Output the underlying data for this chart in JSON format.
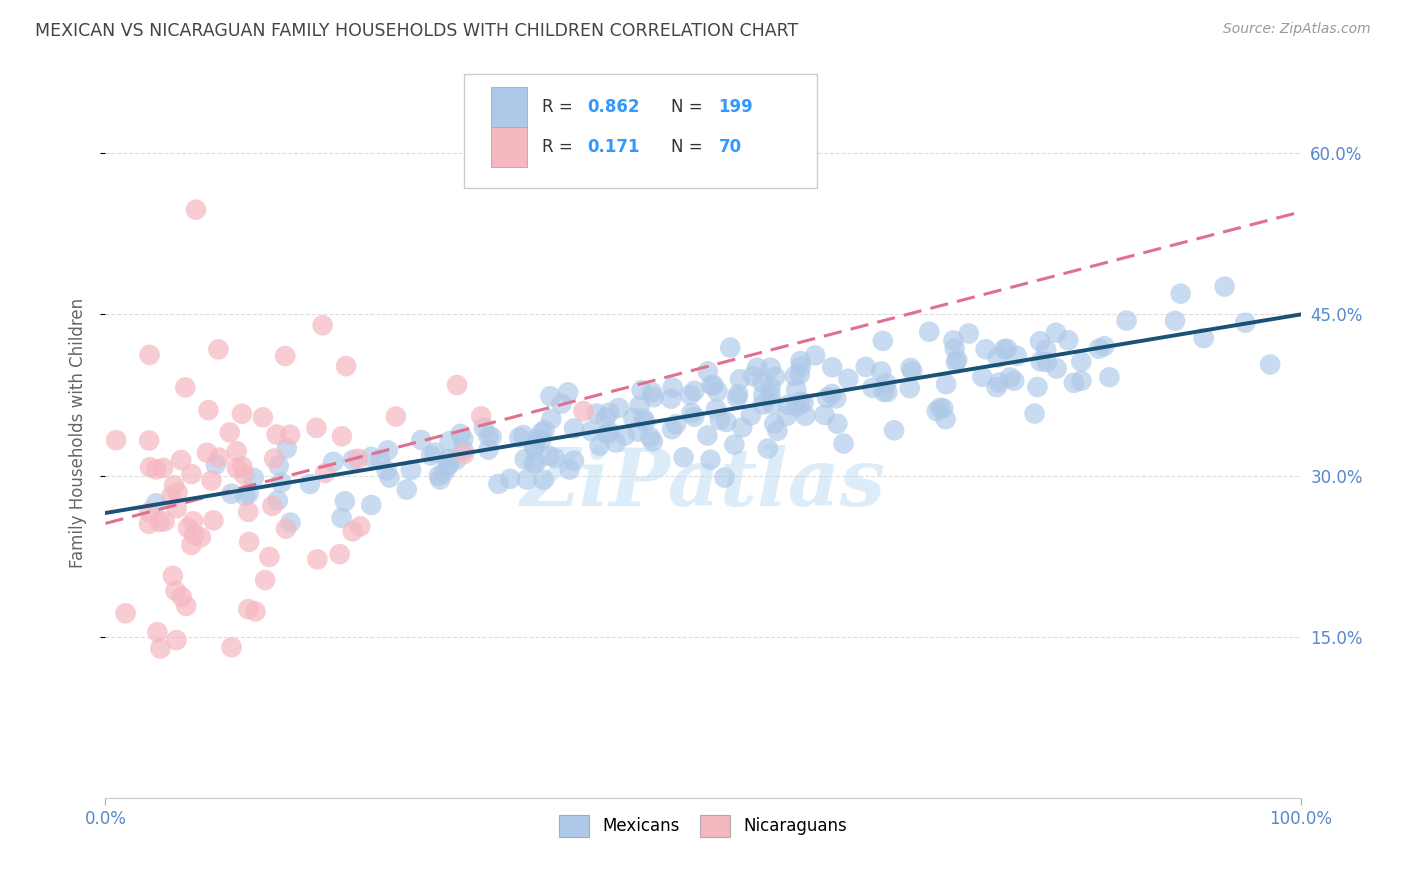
{
  "title": "MEXICAN VS NICARAGUAN FAMILY HOUSEHOLDS WITH CHILDREN CORRELATION CHART",
  "source": "Source: ZipAtlas.com",
  "ylabel": "Family Households with Children",
  "mexican_R": 0.862,
  "mexican_N": 199,
  "nicaraguan_R": 0.171,
  "nicaraguan_N": 70,
  "mexican_color": "#adc8e8",
  "mexican_line_color": "#1a5276",
  "nicaraguan_color": "#f5b7c0",
  "nicaraguan_line_color": "#e07090",
  "nicaraguan_dash_color": "#d4a0b0",
  "watermark": "ZiPatlas",
  "title_color": "#444444",
  "source_color": "#999999",
  "legend_R_color": "#3399ff",
  "legend_N_color": "#3399ff",
  "axis_tick_color": "#5588cc",
  "xlim": [
    0,
    1
  ],
  "ylim": [
    0.0,
    0.68
  ],
  "ytick_positions": [
    0.15,
    0.3,
    0.45,
    0.6
  ],
  "ytick_labels": [
    "15.0%",
    "30.0%",
    "45.0%",
    "60.0%"
  ],
  "xtick_positions": [
    0.0,
    1.0
  ],
  "xtick_labels": [
    "0.0%",
    "100.0%"
  ],
  "legend_labels": [
    "Mexicans",
    "Nicaraguans"
  ],
  "grid_color": "#dddddd",
  "background_color": "#ffffff",
  "grid_hlines": [
    0.15,
    0.3,
    0.45,
    0.6
  ]
}
